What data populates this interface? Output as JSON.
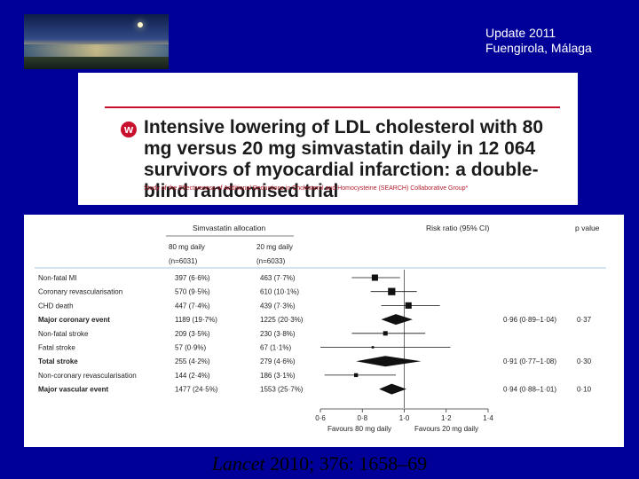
{
  "header": {
    "line1": "Update 2011",
    "line2": "Fuengirola, Málaga"
  },
  "article": {
    "title": "Intensive lowering of LDL cholesterol with 80 mg versus 20 mg simvastatin daily in 12 064 survivors of myocardial infarction: a double-blind randomised trial",
    "authors": "Study of the Effectiveness of Additional Reductions in Cholesterol and Homocysteine (SEARCH) Collaborative Group*"
  },
  "forest": {
    "allocation_header": "Simvastatin allocation",
    "col80": "80 mg daily",
    "col80_n": "(n=6031)",
    "col20": "20 mg daily",
    "col20_n": "(n=6033)",
    "rr_header": "Risk ratio (95% CI)",
    "p_header": "p value",
    "rows": [
      {
        "label": "Non-fatal MI",
        "a": "397 (6·6%)",
        "b": "463 (7·7%)",
        "rr": 0.86,
        "lo": 0.75,
        "hi": 0.98,
        "bold": false
      },
      {
        "label": "Coronary revascularisation",
        "a": "570 (9·5%)",
        "b": "610 (10·1%)",
        "rr": 0.94,
        "lo": 0.84,
        "hi": 1.06,
        "bold": false
      },
      {
        "label": "CHD death",
        "a": "447 (7·4%)",
        "b": "439 (7·3%)",
        "rr": 1.02,
        "lo": 0.89,
        "hi": 1.17,
        "bold": false
      },
      {
        "label": "Major coronary event",
        "a": "1189 (19·7%)",
        "b": "1225 (20·3%)",
        "rr": 0.96,
        "lo": 0.89,
        "hi": 1.04,
        "bold": true,
        "ci": "0·96 (0·89–1·04)",
        "p": "0·37"
      },
      {
        "label": "Non-fatal stroke",
        "a": "209 (3·5%)",
        "b": "230 (3·8%)",
        "rr": 0.91,
        "lo": 0.75,
        "hi": 1.1,
        "bold": false
      },
      {
        "label": "Fatal stroke",
        "a": "57 (0·9%)",
        "b": "67 (1·1%)",
        "rr": 0.85,
        "lo": 0.6,
        "hi": 1.22,
        "bold": false
      },
      {
        "label": "Total stroke",
        "a": "255 (4·2%)",
        "b": "279 (4·6%)",
        "rr": 0.91,
        "lo": 0.77,
        "hi": 1.08,
        "bold": true,
        "ci": "0·91 (0·77–1·08)",
        "p": "0·30"
      },
      {
        "label": "Non-coronary revascularisation",
        "a": "144 (2·4%)",
        "b": "186 (3·1%)",
        "rr": 0.77,
        "lo": 0.62,
        "hi": 0.96,
        "bold": false
      },
      {
        "label": "Major vascular event",
        "a": "1477 (24·5%)",
        "b": "1553 (25·7%)",
        "rr": 0.94,
        "lo": 0.88,
        "hi": 1.01,
        "bold": true,
        "ci": "0·94 (0·88–1·01)",
        "p": "0·10"
      }
    ],
    "axis_ticks": [
      {
        "v": 0.6,
        "label": "0·6"
      },
      {
        "v": 0.8,
        "label": "0·8"
      },
      {
        "v": 1.0,
        "label": "1·0"
      },
      {
        "v": 1.2,
        "label": "1·2"
      },
      {
        "v": 1.4,
        "label": "1·4"
      }
    ],
    "favours_left": "Favours 80 mg daily",
    "favours_right": "Favours 20 mg daily"
  },
  "chart_data": {
    "type": "scatter",
    "title": "",
    "xlabel": "",
    "ylabel": "",
    "xlim": [
      0.6,
      1.4
    ],
    "categories": [
      "Non-fatal MI",
      "Coronary revascularisation",
      "CHD death",
      "Major coronary event",
      "Non-fatal stroke",
      "Fatal stroke",
      "Total stroke",
      "Non-coronary revascularisation",
      "Major vascular event"
    ],
    "values": [
      0.86,
      0.94,
      1.02,
      0.96,
      0.91,
      0.85,
      0.91,
      0.77,
      0.94
    ]
  },
  "citation": {
    "journal": "Lancet",
    "ref": " 2010; 376: 1658–69"
  },
  "colors": {
    "background": "#000099",
    "accent": "#c8102e",
    "divider": "#a9c6df"
  }
}
